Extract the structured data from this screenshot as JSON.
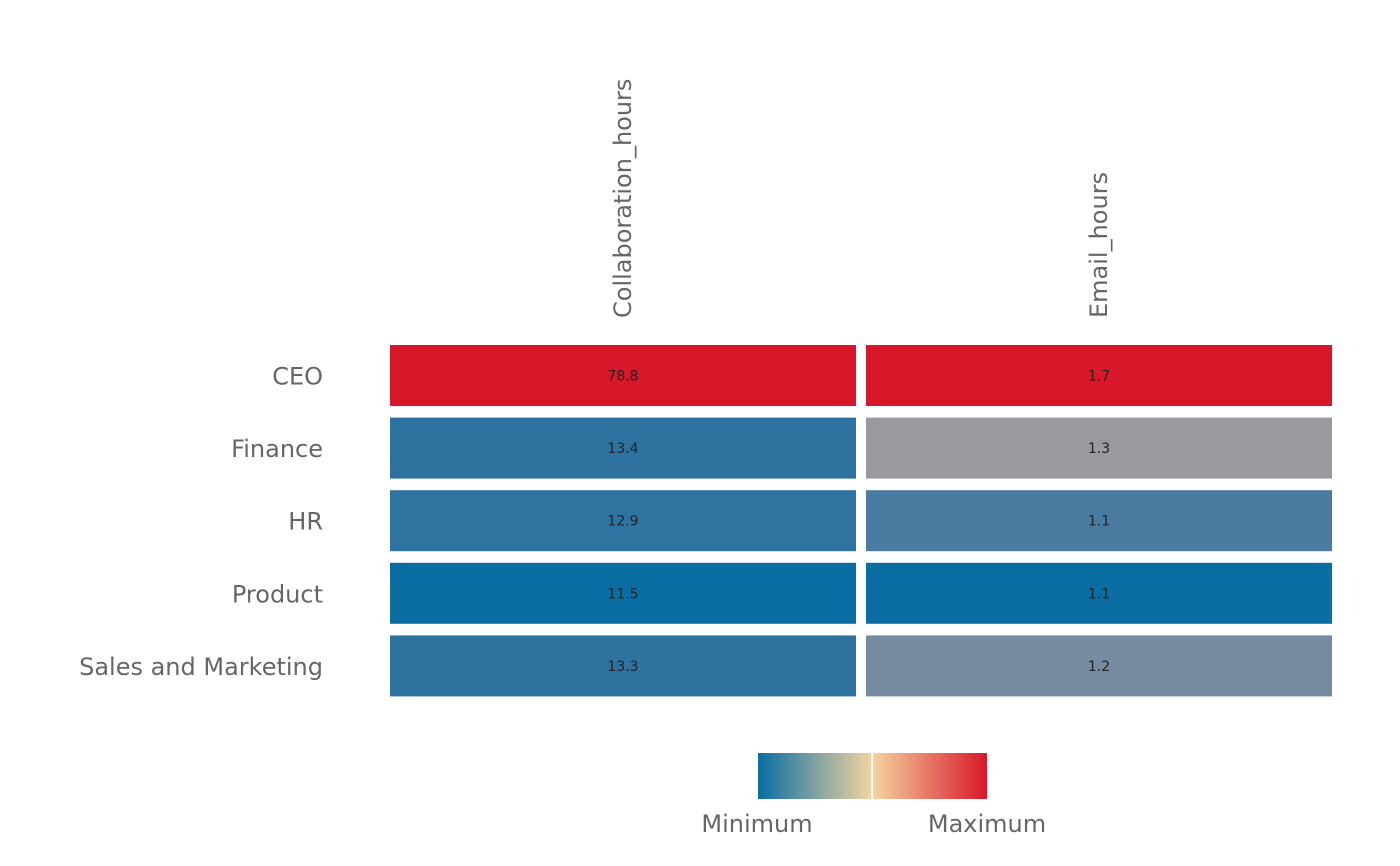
{
  "chart_data": {
    "type": "heatmap",
    "rows": [
      "CEO",
      "Finance",
      "HR",
      "Product",
      "Sales and Marketing"
    ],
    "columns": [
      "Collaboration_hours",
      "Email_hours"
    ],
    "values": [
      [
        78.8,
        1.7
      ],
      [
        13.4,
        1.3
      ],
      [
        12.9,
        1.1
      ],
      [
        11.5,
        1.1
      ],
      [
        13.3,
        1.2
      ]
    ],
    "value_labels": [
      [
        "78.8",
        "1.7"
      ],
      [
        "13.4",
        "1.3"
      ],
      [
        "12.9",
        "1.1"
      ],
      [
        "11.5",
        "1.1"
      ],
      [
        "13.3",
        "1.2"
      ]
    ],
    "cell_colors": [
      [
        "#d8172a",
        "#d8172a"
      ],
      [
        "#2e73a0",
        "#989a9d"
      ],
      [
        "#2f74a0",
        "#4a7ba1"
      ],
      [
        "#0a6ea3",
        "#0a6ea3"
      ],
      [
        "#2e73a0",
        "#778ba0"
      ]
    ],
    "legend": {
      "labels": [
        "Minimum",
        "Maximum"
      ],
      "gradient_colors": [
        "#0a6ea3",
        "#f4d5a0",
        "#d8172a"
      ]
    }
  }
}
